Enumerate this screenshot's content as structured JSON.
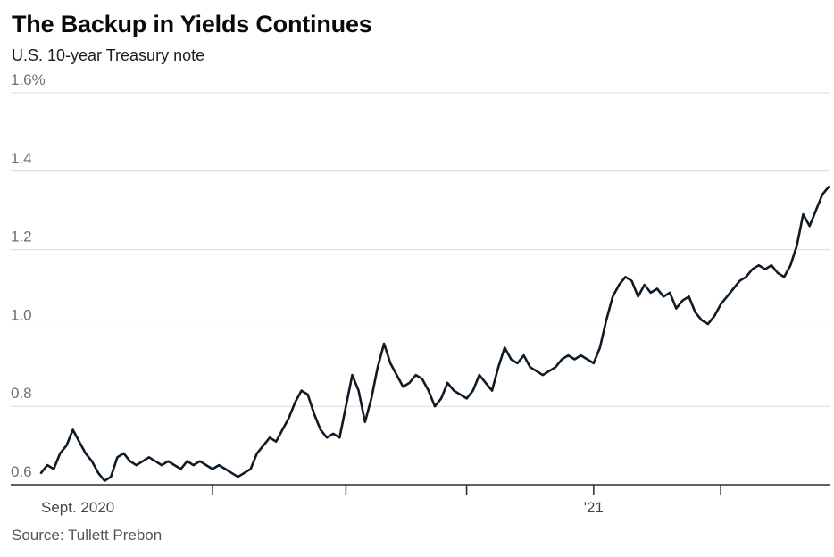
{
  "chart_data": {
    "type": "line",
    "title": "The Backup in Yields Continues",
    "subtitle": "U.S. 10-year Treasury note",
    "source": "Source: Tullett Prebon",
    "unit": "%",
    "ylim": [
      0.6,
      1.6
    ],
    "yticks": [
      {
        "value": 1.6,
        "label": "1.6%"
      },
      {
        "value": 1.4,
        "label": "1.4"
      },
      {
        "value": 1.2,
        "label": "1.2"
      },
      {
        "value": 1.0,
        "label": "1.0"
      },
      {
        "value": 0.8,
        "label": "0.8"
      },
      {
        "value": 0.6,
        "label": "0.6"
      }
    ],
    "x_start_label": "Sept. 2020",
    "xticks": [
      {
        "index": 27,
        "label": ""
      },
      {
        "index": 48,
        "label": ""
      },
      {
        "index": 67,
        "label": ""
      },
      {
        "index": 87,
        "label": "'21"
      },
      {
        "index": 107,
        "label": ""
      }
    ],
    "series": [
      {
        "name": "U.S. 10-year Treasury note yield",
        "values": [
          0.63,
          0.65,
          0.64,
          0.68,
          0.7,
          0.74,
          0.71,
          0.68,
          0.66,
          0.63,
          0.61,
          0.62,
          0.67,
          0.68,
          0.66,
          0.65,
          0.66,
          0.67,
          0.66,
          0.65,
          0.66,
          0.65,
          0.64,
          0.66,
          0.65,
          0.66,
          0.65,
          0.64,
          0.65,
          0.64,
          0.63,
          0.62,
          0.63,
          0.64,
          0.68,
          0.7,
          0.72,
          0.71,
          0.74,
          0.77,
          0.81,
          0.84,
          0.83,
          0.78,
          0.74,
          0.72,
          0.73,
          0.72,
          0.8,
          0.88,
          0.84,
          0.76,
          0.82,
          0.9,
          0.96,
          0.91,
          0.88,
          0.85,
          0.86,
          0.88,
          0.87,
          0.84,
          0.8,
          0.82,
          0.86,
          0.84,
          0.83,
          0.82,
          0.84,
          0.88,
          0.86,
          0.84,
          0.9,
          0.95,
          0.92,
          0.91,
          0.93,
          0.9,
          0.89,
          0.88,
          0.89,
          0.9,
          0.92,
          0.93,
          0.92,
          0.93,
          0.92,
          0.91,
          0.95,
          1.02,
          1.08,
          1.11,
          1.13,
          1.12,
          1.08,
          1.11,
          1.09,
          1.1,
          1.08,
          1.09,
          1.05,
          1.07,
          1.08,
          1.04,
          1.02,
          1.01,
          1.03,
          1.06,
          1.08,
          1.1,
          1.12,
          1.13,
          1.15,
          1.16,
          1.15,
          1.16,
          1.14,
          1.13,
          1.16,
          1.21,
          1.29,
          1.26,
          1.3,
          1.34,
          1.36
        ]
      }
    ],
    "colors": {
      "line": "#0e1b26",
      "grid": "#dcdcdc",
      "axis": "#2b2b2b",
      "tick_label": "#6d6f72",
      "x_label": "#454545"
    }
  }
}
